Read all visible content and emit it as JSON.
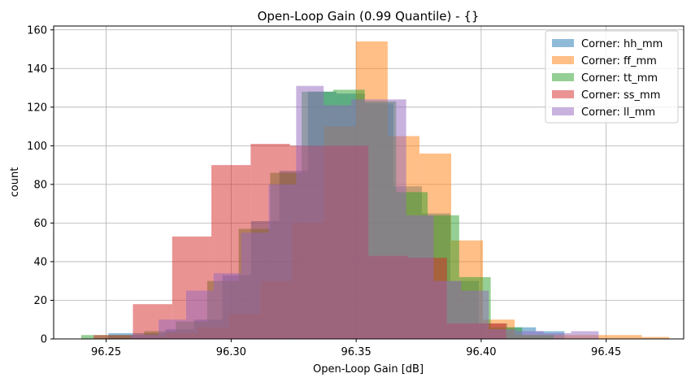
{
  "chart_data": {
    "type": "histogram",
    "title": "Open-Loop Gain (0.99 Quantile) - {}",
    "xlabel": "Open-Loop Gain [dB]",
    "ylabel": "count",
    "xlim": [
      96.229,
      96.481
    ],
    "ylim": [
      0,
      162
    ],
    "xticks": [
      96.25,
      96.3,
      96.35,
      96.4,
      96.45
    ],
    "xtick_labels": [
      "96.25",
      "96.30",
      "96.35",
      "96.40",
      "96.45"
    ],
    "yticks": [
      0,
      20,
      40,
      60,
      80,
      100,
      120,
      140,
      160
    ],
    "ytick_labels": [
      "0",
      "20",
      "40",
      "60",
      "80",
      "100",
      "120",
      "140",
      "160"
    ],
    "grid": true,
    "legend_position": "top-right",
    "alpha": 0.5,
    "series": [
      {
        "name": "Corner: hh_mm",
        "color": "#1f77b4",
        "bins": [
          {
            "x0": 96.2509,
            "x1": 96.2623,
            "count": 3
          },
          {
            "x0": 96.2623,
            "x1": 96.2737,
            "count": 3
          },
          {
            "x0": 96.2737,
            "x1": 96.2851,
            "count": 5
          },
          {
            "x0": 96.2851,
            "x1": 96.2965,
            "count": 10
          },
          {
            "x0": 96.2965,
            "x1": 96.3079,
            "count": 33
          },
          {
            "x0": 96.3079,
            "x1": 96.3193,
            "count": 61
          },
          {
            "x0": 96.3193,
            "x1": 96.3307,
            "count": 87
          },
          {
            "x0": 96.3307,
            "x1": 96.3421,
            "count": 128
          },
          {
            "x0": 96.3421,
            "x1": 96.3535,
            "count": 127
          },
          {
            "x0": 96.3535,
            "x1": 96.3649,
            "count": 122
          },
          {
            "x0": 96.3649,
            "x1": 96.3763,
            "count": 79
          },
          {
            "x0": 96.3763,
            "x1": 96.3877,
            "count": 65
          },
          {
            "x0": 96.3877,
            "x1": 96.3991,
            "count": 30
          },
          {
            "x0": 96.3991,
            "x1": 96.4105,
            "count": 8
          },
          {
            "x0": 96.4105,
            "x1": 96.4219,
            "count": 6
          },
          {
            "x0": 96.4219,
            "x1": 96.4333,
            "count": 4
          }
        ]
      },
      {
        "name": "Corner: ff_mm",
        "color": "#ff7f0e",
        "bins": [
          {
            "x0": 96.261,
            "x1": 96.2737,
            "count": 1
          },
          {
            "x0": 96.2737,
            "x1": 96.2864,
            "count": 3
          },
          {
            "x0": 96.2864,
            "x1": 96.2991,
            "count": 6
          },
          {
            "x0": 96.2991,
            "x1": 96.3118,
            "count": 13
          },
          {
            "x0": 96.3118,
            "x1": 96.3245,
            "count": 30
          },
          {
            "x0": 96.3245,
            "x1": 96.3372,
            "count": 60
          },
          {
            "x0": 96.3372,
            "x1": 96.3499,
            "count": 110
          },
          {
            "x0": 96.3499,
            "x1": 96.3626,
            "count": 154
          },
          {
            "x0": 96.3626,
            "x1": 96.3753,
            "count": 105
          },
          {
            "x0": 96.3753,
            "x1": 96.388,
            "count": 96
          },
          {
            "x0": 96.388,
            "x1": 96.4007,
            "count": 51
          },
          {
            "x0": 96.4007,
            "x1": 96.4134,
            "count": 10
          },
          {
            "x0": 96.4134,
            "x1": 96.4261,
            "count": 2
          },
          {
            "x0": 96.4261,
            "x1": 96.4388,
            "count": 2
          },
          {
            "x0": 96.4388,
            "x1": 96.4515,
            "count": 2
          },
          {
            "x0": 96.4515,
            "x1": 96.4642,
            "count": 2
          },
          {
            "x0": 96.4642,
            "x1": 96.4752,
            "count": 1
          }
        ]
      },
      {
        "name": "Corner: tt_mm",
        "color": "#2ca02c",
        "bins": [
          {
            "x0": 96.24,
            "x1": 96.2526,
            "count": 2
          },
          {
            "x0": 96.2526,
            "x1": 96.2652,
            "count": 2
          },
          {
            "x0": 96.2652,
            "x1": 96.2778,
            "count": 4
          },
          {
            "x0": 96.2778,
            "x1": 96.2904,
            "count": 9
          },
          {
            "x0": 96.2904,
            "x1": 96.303,
            "count": 30
          },
          {
            "x0": 96.303,
            "x1": 96.3156,
            "count": 57
          },
          {
            "x0": 96.3156,
            "x1": 96.3282,
            "count": 86
          },
          {
            "x0": 96.3282,
            "x1": 96.3408,
            "count": 128
          },
          {
            "x0": 96.3408,
            "x1": 96.3534,
            "count": 129
          },
          {
            "x0": 96.3534,
            "x1": 96.366,
            "count": 123
          },
          {
            "x0": 96.366,
            "x1": 96.3786,
            "count": 76
          },
          {
            "x0": 96.3786,
            "x1": 96.3912,
            "count": 64
          },
          {
            "x0": 96.3912,
            "x1": 96.4038,
            "count": 32
          },
          {
            "x0": 96.4038,
            "x1": 96.4164,
            "count": 6
          },
          {
            "x0": 96.4164,
            "x1": 96.429,
            "count": 2
          }
        ]
      },
      {
        "name": "Corner: ss_mm",
        "color": "#d62728",
        "bins": [
          {
            "x0": 96.245,
            "x1": 96.2607,
            "count": 2
          },
          {
            "x0": 96.2607,
            "x1": 96.2764,
            "count": 18
          },
          {
            "x0": 96.2764,
            "x1": 96.2921,
            "count": 53
          },
          {
            "x0": 96.2921,
            "x1": 96.3078,
            "count": 90
          },
          {
            "x0": 96.3078,
            "x1": 96.3235,
            "count": 101
          },
          {
            "x0": 96.3235,
            "x1": 96.3392,
            "count": 100
          },
          {
            "x0": 96.3392,
            "x1": 96.3549,
            "count": 100
          },
          {
            "x0": 96.3549,
            "x1": 96.3706,
            "count": 43
          },
          {
            "x0": 96.3706,
            "x1": 96.3863,
            "count": 42
          },
          {
            "x0": 96.3863,
            "x1": 96.402,
            "count": 8
          },
          {
            "x0": 96.402,
            "x1": 96.41,
            "count": 8
          }
        ]
      },
      {
        "name": "Corner: ll_mm",
        "color": "#9467bd",
        "bins": [
          {
            "x0": 96.26,
            "x1": 96.271,
            "count": 2
          },
          {
            "x0": 96.271,
            "x1": 96.282,
            "count": 10
          },
          {
            "x0": 96.282,
            "x1": 96.293,
            "count": 25
          },
          {
            "x0": 96.293,
            "x1": 96.304,
            "count": 34
          },
          {
            "x0": 96.304,
            "x1": 96.315,
            "count": 55
          },
          {
            "x0": 96.315,
            "x1": 96.326,
            "count": 80
          },
          {
            "x0": 96.326,
            "x1": 96.337,
            "count": 131
          },
          {
            "x0": 96.337,
            "x1": 96.348,
            "count": 121
          },
          {
            "x0": 96.348,
            "x1": 96.359,
            "count": 124
          },
          {
            "x0": 96.359,
            "x1": 96.37,
            "count": 124
          },
          {
            "x0": 96.37,
            "x1": 96.381,
            "count": 64
          },
          {
            "x0": 96.381,
            "x1": 96.392,
            "count": 30
          },
          {
            "x0": 96.392,
            "x1": 96.403,
            "count": 25
          },
          {
            "x0": 96.403,
            "x1": 96.414,
            "count": 5
          },
          {
            "x0": 96.414,
            "x1": 96.425,
            "count": 4
          },
          {
            "x0": 96.425,
            "x1": 96.436,
            "count": 3
          },
          {
            "x0": 96.436,
            "x1": 96.447,
            "count": 4
          }
        ]
      }
    ]
  }
}
